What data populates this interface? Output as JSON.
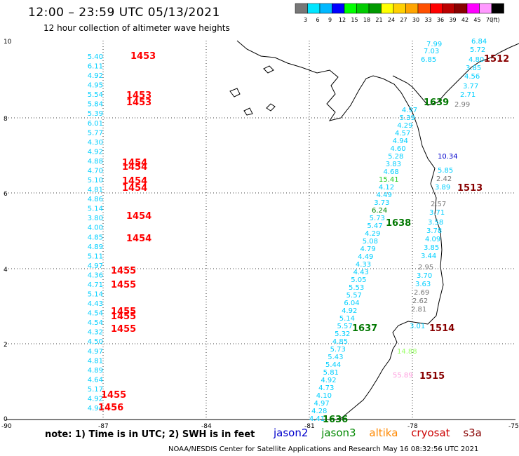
{
  "header": {
    "title": "12:00 – 23:59 UTC 05/13/2021",
    "subtitle": "12 hour collection of altimeter wave heights"
  },
  "colorbar": {
    "unit": "(ft)",
    "levels": [
      "3",
      "6",
      "9",
      "12",
      "15",
      "18",
      "21",
      "24",
      "27",
      "30",
      "33",
      "36",
      "39",
      "42",
      "45",
      "70"
    ],
    "colors": [
      "#777777",
      "#00e5ff",
      "#00b8ff",
      "#0000ff",
      "#00ff00",
      "#00cc00",
      "#009900",
      "#ffff00",
      "#ffd000",
      "#ffa500",
      "#ff5000",
      "#ff0000",
      "#bb0000",
      "#880000",
      "#ff00ff",
      "#ff99ff",
      "#000000"
    ]
  },
  "axes": {
    "x_ticks": [
      "-90",
      "-87",
      "-84",
      "-81",
      "-78",
      "-75"
    ],
    "y_ticks": [
      "0",
      "2",
      "4",
      "6",
      "8",
      "10"
    ]
  },
  "colors": {
    "jason2": "#0000cc",
    "jason3": "#008800",
    "altika": "#ff8800",
    "cryosat": "#cc0000",
    "s3a": "#880000",
    "swh_cyan": "#00cfff",
    "swh_gray": "#777777",
    "time_red": "#ff0000",
    "time_green": "#007700",
    "time_darkred": "#880000"
  },
  "track_87": {
    "values": [
      "5.40",
      "6.11",
      "4.92",
      "4.95",
      "5.54",
      "5.84",
      "5.39",
      "6.01",
      "5.77",
      "4.30",
      "4.92",
      "4.88",
      "4.70",
      "5.10",
      "4.81",
      "4.86",
      "5.14",
      "3.80",
      "4.00",
      "4.85",
      "4.89",
      "5.11",
      "4.97",
      "4.36",
      "4.71",
      "5.14",
      "4.43",
      "4.54",
      "4.54",
      "4.32",
      "4.50",
      "4.97",
      "4.81",
      "4.89",
      "4.64",
      "5.17",
      "4.92",
      "4.94"
    ],
    "times": [
      "1453",
      "1453",
      "1453",
      "1454",
      "1454",
      "1454",
      "1454",
      "1454",
      "1454",
      "1455",
      "1455",
      "1455",
      "1455",
      "1455",
      "1455",
      "1456"
    ]
  },
  "track_jason3_1638": {
    "values": [
      "4.97",
      "5.39",
      "4.29",
      "4.57",
      "4.94",
      "4.60",
      "5.28",
      "3.83",
      "4.68",
      "15.41",
      "4.12",
      "4.49",
      "3.73",
      "6.24",
      "5.73",
      "5.47",
      "4.29",
      "5.08",
      "4.79",
      "4.49",
      "4.33",
      "4.43",
      "5.05",
      "5.53",
      "5.57",
      "6.04",
      "4.92",
      "5.14",
      "5.57",
      "5.32",
      "4.85",
      "5.73",
      "5.43",
      "5.44",
      "5.81",
      "4.92",
      "4.73",
      "4.10",
      "4.97",
      "4.28",
      "4.41"
    ],
    "times": [
      "1638",
      "1637",
      "1636"
    ]
  },
  "track_east": {
    "values": [
      "7.99",
      "7.03",
      "6.85",
      "6.84",
      "5.72",
      "4.80",
      "3.85",
      "4.56",
      "3.77",
      "2.71",
      "2.99",
      "10.34",
      "5.85",
      "2.42",
      "3.89",
      "2.57",
      "3.71",
      "3.58",
      "3.78",
      "4.09",
      "3.85",
      "3.44",
      "2.95",
      "3.70",
      "3.63",
      "2.69",
      "2.62",
      "2.81",
      "3.01",
      "14.88",
      "55.89"
    ],
    "times": [
      "1639",
      "1512",
      "1513",
      "1514",
      "1515"
    ]
  },
  "footer": {
    "note": "note:  1) Time is in UTC;  2) SWH is in feet",
    "sats": [
      "jason2",
      "jason3",
      "altika",
      "cryosat",
      "s3a"
    ],
    "credit": "NOAA/NESDIS Center for Satellite Applications and Research     May 16 08:32:56 UTC 2021"
  }
}
